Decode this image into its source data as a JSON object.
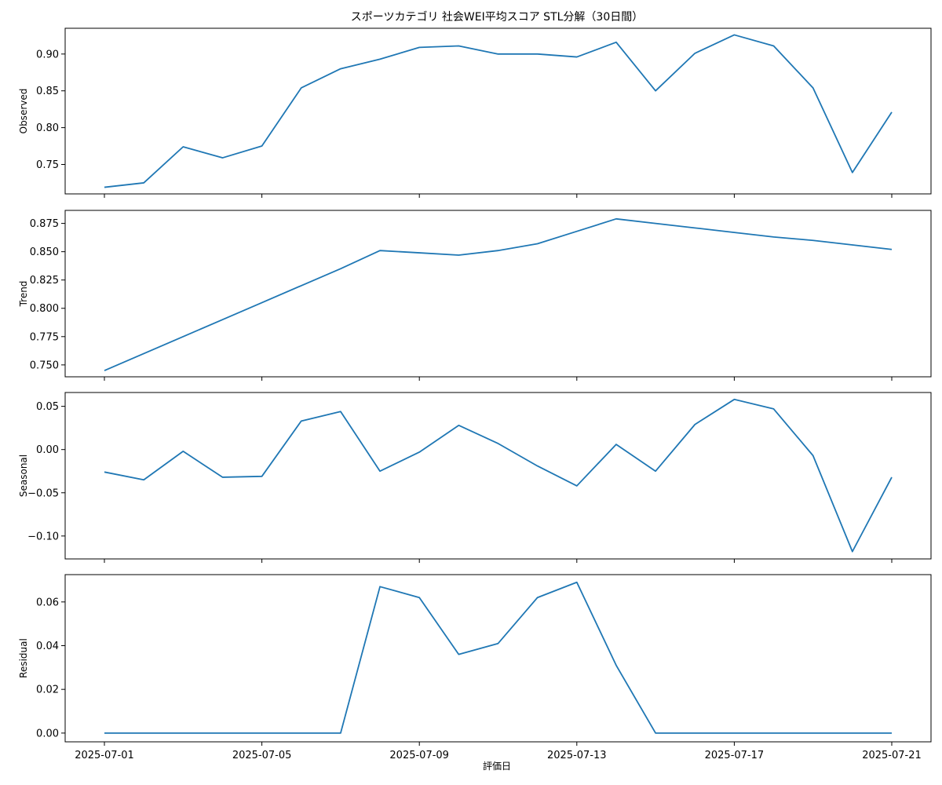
{
  "chart_data": {
    "type": "line",
    "title": "スポーツカテゴリ 社会WEI平均スコア STL分解（30日間）",
    "xlabel": "評価日",
    "x": [
      "2025-07-01",
      "2025-07-02",
      "2025-07-03",
      "2025-07-04",
      "2025-07-05",
      "2025-07-06",
      "2025-07-07",
      "2025-07-08",
      "2025-07-09",
      "2025-07-10",
      "2025-07-11",
      "2025-07-12",
      "2025-07-13",
      "2025-07-14",
      "2025-07-15",
      "2025-07-16",
      "2025-07-17",
      "2025-07-18",
      "2025-07-19",
      "2025-07-20",
      "2025-07-21"
    ],
    "x_tick_labels": [
      "2025-07-01",
      "2025-07-05",
      "2025-07-09",
      "2025-07-13",
      "2025-07-17",
      "2025-07-21"
    ],
    "panels": [
      {
        "name": "observed",
        "ylabel": "Observed",
        "ylim": [
          0.71,
          0.935
        ],
        "yticks": [
          0.75,
          0.8,
          0.85,
          0.9
        ],
        "ytick_labels": [
          "0.75",
          "0.80",
          "0.85",
          "0.90"
        ],
        "values": [
          0.719,
          0.725,
          0.774,
          0.759,
          0.775,
          0.854,
          0.88,
          0.893,
          0.909,
          0.911,
          0.9,
          0.9,
          0.896,
          0.916,
          0.85,
          0.901,
          0.926,
          0.911,
          0.854,
          0.739,
          0.821
        ]
      },
      {
        "name": "trend",
        "ylabel": "Trend",
        "ylim": [
          0.7395,
          0.8865
        ],
        "yticks": [
          0.75,
          0.775,
          0.8,
          0.825,
          0.85,
          0.875
        ],
        "ytick_labels": [
          "0.750",
          "0.775",
          "0.800",
          "0.825",
          "0.850",
          "0.875"
        ],
        "values": [
          0.745,
          0.76,
          0.775,
          0.79,
          0.805,
          0.82,
          0.835,
          0.851,
          0.849,
          0.847,
          0.851,
          0.857,
          0.868,
          0.879,
          0.875,
          0.871,
          0.867,
          0.863,
          0.86,
          0.856,
          0.852
        ]
      },
      {
        "name": "seasonal",
        "ylabel": "Seasonal",
        "ylim": [
          -0.1265,
          0.066
        ],
        "yticks": [
          -0.1,
          -0.05,
          0.0,
          0.05
        ],
        "ytick_labels": [
          "−0.10",
          "−0.05",
          "0.00",
          "0.05"
        ],
        "values": [
          -0.026,
          -0.035,
          -0.002,
          -0.032,
          -0.031,
          0.033,
          0.044,
          -0.025,
          -0.003,
          0.028,
          0.007,
          -0.019,
          -0.042,
          0.006,
          -0.025,
          0.029,
          0.058,
          0.047,
          -0.007,
          -0.118,
          -0.032
        ]
      },
      {
        "name": "residual",
        "ylabel": "Residual",
        "ylim": [
          -0.004,
          0.0725
        ],
        "yticks": [
          0.0,
          0.02,
          0.04,
          0.06
        ],
        "ytick_labels": [
          "0.00",
          "0.02",
          "0.04",
          "0.06"
        ],
        "values": [
          0.0,
          0.0,
          0.0,
          0.0,
          0.0,
          0.0,
          0.0,
          0.067,
          0.062,
          0.036,
          0.041,
          0.062,
          0.069,
          0.031,
          0.0,
          0.0,
          0.0,
          0.0,
          0.0,
          0.0,
          0.0
        ]
      }
    ],
    "colors": {
      "line": "#1f77b4"
    },
    "grid": false
  }
}
